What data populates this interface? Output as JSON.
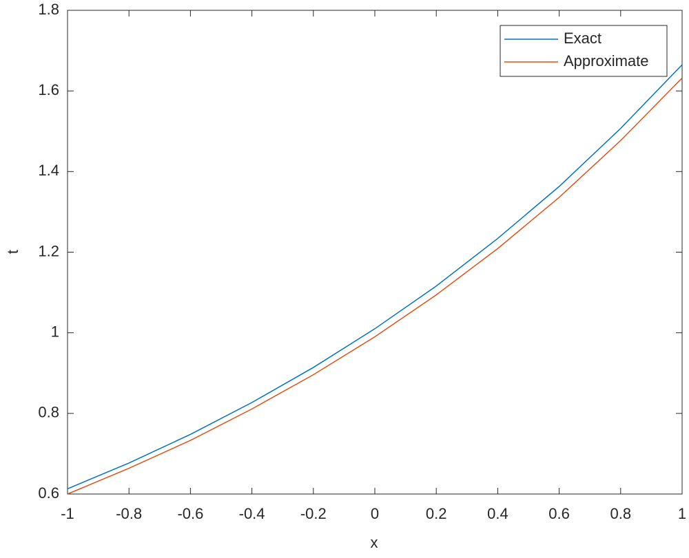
{
  "chart_data": {
    "type": "line",
    "x": [
      -1,
      -0.8,
      -0.6,
      -0.4,
      -0.2,
      0,
      0.2,
      0.4,
      0.6,
      0.8,
      1
    ],
    "series": [
      {
        "name": "Exact",
        "color": "#0072bd",
        "values": [
          0.613,
          0.677,
          0.748,
          0.827,
          0.914,
          1.01,
          1.116,
          1.234,
          1.363,
          1.507,
          1.665
        ]
      },
      {
        "name": "Approximate",
        "color": "#d95319",
        "values": [
          0.6,
          0.664,
          0.733,
          0.811,
          0.896,
          0.99,
          1.094,
          1.209,
          1.336,
          1.477,
          1.632
        ]
      }
    ],
    "x_label": "x",
    "y_label": "t",
    "xlim": [
      -1,
      1
    ],
    "xticks": [
      -1,
      -0.8,
      -0.6,
      -0.4,
      -0.2,
      0,
      0.2,
      0.4,
      0.6,
      0.8,
      1
    ],
    "ylim": [
      0.6,
      1.8
    ],
    "yticks": [
      0.6,
      0.8,
      1,
      1.2,
      1.4,
      1.6,
      1.8
    ],
    "grid": false,
    "legend_position": "top-right"
  }
}
